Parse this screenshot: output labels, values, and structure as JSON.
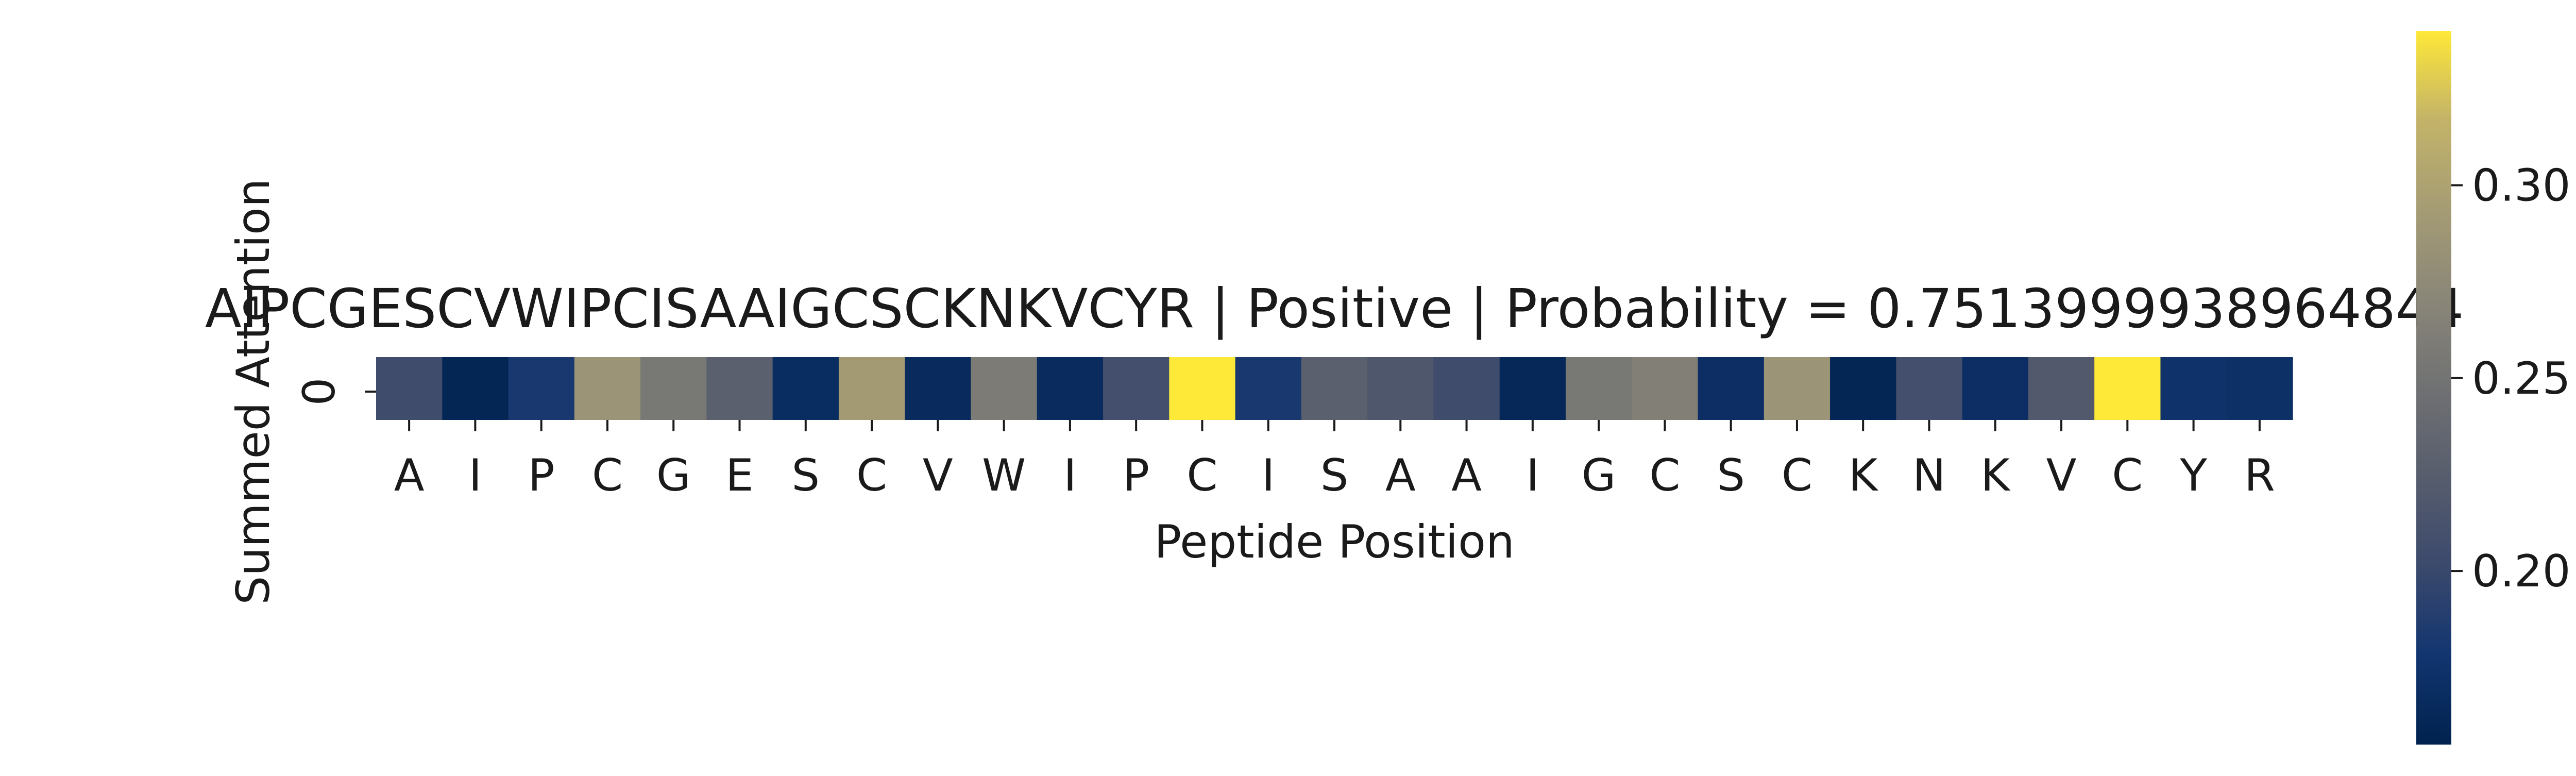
{
  "chart_data": {
    "type": "heatmap",
    "title": "AIPCGESCVWIPCISAAIGCSCKNKVCYR | Positive | Probability = 0.7513999938964844",
    "xlabel": "Peptide Position",
    "ylabel": "Summed Attention",
    "x_categories": [
      "A",
      "I",
      "P",
      "C",
      "G",
      "E",
      "S",
      "C",
      "V",
      "W",
      "I",
      "P",
      "C",
      "I",
      "S",
      "A",
      "A",
      "I",
      "G",
      "C",
      "S",
      "C",
      "K",
      "N",
      "K",
      "V",
      "C",
      "Y",
      "R"
    ],
    "y_categories": [
      "0"
    ],
    "values": [
      [
        0.205,
        0.16,
        0.182,
        0.285,
        0.255,
        0.228,
        0.168,
        0.292,
        0.165,
        0.258,
        0.166,
        0.208,
        0.34,
        0.182,
        0.228,
        0.218,
        0.205,
        0.162,
        0.255,
        0.263,
        0.17,
        0.285,
        0.16,
        0.208,
        0.17,
        0.22,
        0.34,
        0.175,
        0.172
      ]
    ],
    "colormap": "cividis",
    "colorbar": {
      "range": [
        0.155,
        0.34
      ],
      "ticks": [
        0.2,
        0.25,
        0.3
      ],
      "tick_labels": [
        "0.20",
        "0.25",
        "0.30"
      ]
    },
    "grid": false
  }
}
